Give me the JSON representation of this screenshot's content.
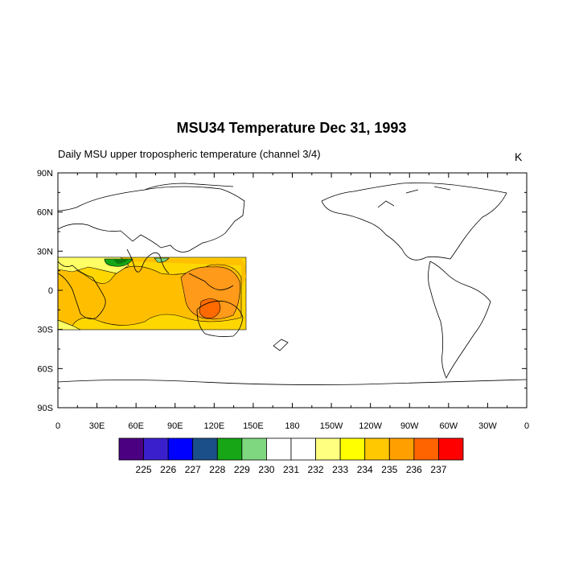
{
  "title": "MSU34 Temperature Dec 31, 1993",
  "subtitle": "Daily MSU upper tropospheric temperature (channel 3/4)",
  "units": "K",
  "map": {
    "projection": "cylindrical-equidistant",
    "lon_range": [
      0,
      360
    ],
    "lat_range": [
      -90,
      90
    ],
    "y_tick_labels": [
      "90N",
      "60N",
      "30N",
      "0",
      "30S",
      "60S",
      "90S"
    ],
    "x_tick_labels": [
      "0",
      "30E",
      "60E",
      "90E",
      "120E",
      "150E",
      "180",
      "150W",
      "120W",
      "90W",
      "60W",
      "30W",
      "0"
    ],
    "data_region": {
      "lon": [
        0,
        145
      ],
      "lat": [
        -30,
        27
      ]
    }
  },
  "colorbar": {
    "colors": [
      "#4b0082",
      "#3a20cc",
      "#0000ff",
      "#1a4f8a",
      "#16a616",
      "#7fd87f",
      "#ffffff",
      "#ffffff",
      "#ffff80",
      "#ffff00",
      "#ffc800",
      "#ffa000",
      "#ff6400",
      "#ff0000"
    ],
    "labels": [
      "225",
      "226",
      "227",
      "228",
      "229",
      "230",
      "231",
      "232",
      "233",
      "234",
      "235",
      "236",
      "237"
    ]
  }
}
